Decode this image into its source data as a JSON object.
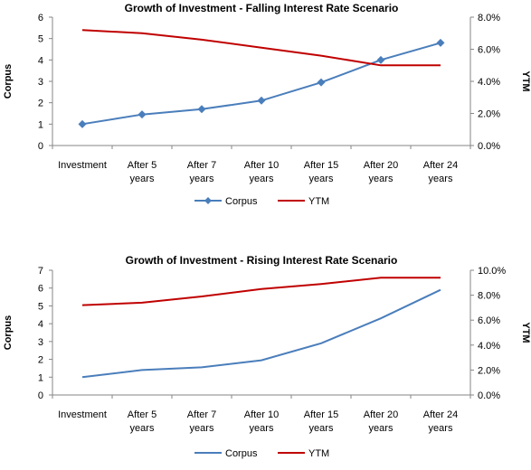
{
  "chart_data": [
    {
      "type": "line",
      "title": "Growth of Investment - Falling  Interest Rate Scenario",
      "categories": [
        [
          "Investment"
        ],
        [
          "After 5",
          "years"
        ],
        [
          "After 7",
          "years"
        ],
        [
          "After 10",
          "years"
        ],
        [
          "After 15",
          "years"
        ],
        [
          "After 20",
          "years"
        ],
        [
          "After 24",
          "years"
        ]
      ],
      "ylabel": "Corpus",
      "y2label": "YTM",
      "ylim": [
        0,
        6
      ],
      "yticks": [
        0,
        1,
        2,
        3,
        4,
        5,
        6
      ],
      "y2lim": [
        0,
        8
      ],
      "y2ticks": [
        "0.0%",
        "2.0%",
        "4.0%",
        "6.0%",
        "8.0%"
      ],
      "series": [
        {
          "name": "Corpus",
          "axis": "left",
          "color": "#4a7ebb",
          "marker": "diamond",
          "values": [
            1.0,
            1.45,
            1.7,
            2.1,
            2.95,
            4.0,
            4.8
          ]
        },
        {
          "name": "YTM",
          "axis": "right",
          "color": "#c00000",
          "marker": "none",
          "values": [
            7.2,
            7.0,
            6.6,
            6.1,
            5.6,
            5.0,
            5.0
          ]
        }
      ],
      "legend": "bottom"
    },
    {
      "type": "line",
      "title": "Growth of Investment - Rising Interest Rate Scenario",
      "categories": [
        [
          "Investment"
        ],
        [
          "After 5",
          "years"
        ],
        [
          "After 7",
          "years"
        ],
        [
          "After 10",
          "years"
        ],
        [
          "After 15",
          "years"
        ],
        [
          "After 20",
          "years"
        ],
        [
          "After 24",
          "years"
        ]
      ],
      "ylabel": "Corpus",
      "y2label": "YTM",
      "ylim": [
        0,
        7
      ],
      "yticks": [
        0,
        1,
        2,
        3,
        4,
        5,
        6,
        7
      ],
      "y2lim": [
        0,
        10
      ],
      "y2ticks": [
        "0.0%",
        "2.0%",
        "4.0%",
        "6.0%",
        "8.0%",
        "10.0%"
      ],
      "series": [
        {
          "name": "Corpus",
          "axis": "left",
          "color": "#4a7ebb",
          "marker": "none",
          "values": [
            1.0,
            1.4,
            1.55,
            1.95,
            2.9,
            4.3,
            5.9
          ]
        },
        {
          "name": "YTM",
          "axis": "right",
          "color": "#c00000",
          "marker": "none",
          "values": [
            7.2,
            7.4,
            7.9,
            8.5,
            8.9,
            9.4,
            9.4
          ]
        }
      ],
      "legend": "bottom"
    }
  ]
}
